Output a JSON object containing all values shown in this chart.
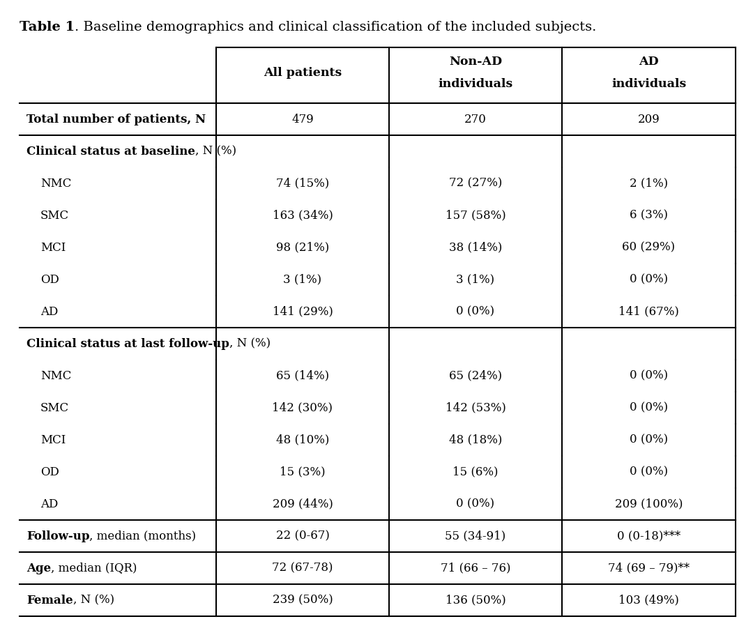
{
  "title_bold": "Table 1",
  "title_rest": ". Baseline demographics and clinical classification of the included subjects.",
  "col_headers": [
    [
      "All patients",
      ""
    ],
    [
      "Non-AD",
      "individuals"
    ],
    [
      "AD",
      "individuals"
    ]
  ],
  "rows": [
    {
      "label": "Total number of patients, N",
      "label_bold": true,
      "label_rest": "",
      "indent": false,
      "values": [
        "479",
        "270",
        "209"
      ],
      "bottom_border": true,
      "top_border": true
    },
    {
      "label": "Clinical status at baseline",
      "label_bold": true,
      "label_rest": ", N (%)",
      "indent": false,
      "values": [
        "",
        "",
        ""
      ],
      "bottom_border": false,
      "top_border": false
    },
    {
      "label": "NMC",
      "label_bold": false,
      "label_rest": "",
      "indent": true,
      "values": [
        "74 (15%)",
        "72 (27%)",
        "2 (1%)"
      ],
      "bottom_border": false,
      "top_border": false
    },
    {
      "label": "SMC",
      "label_bold": false,
      "label_rest": "",
      "indent": true,
      "values": [
        "163 (34%)",
        "157 (58%)",
        "6 (3%)"
      ],
      "bottom_border": false,
      "top_border": false
    },
    {
      "label": "MCI",
      "label_bold": false,
      "label_rest": "",
      "indent": true,
      "values": [
        "98 (21%)",
        "38 (14%)",
        "60 (29%)"
      ],
      "bottom_border": false,
      "top_border": false
    },
    {
      "label": "OD",
      "label_bold": false,
      "label_rest": "",
      "indent": true,
      "values": [
        "3 (1%)",
        "3 (1%)",
        "0 (0%)"
      ],
      "bottom_border": false,
      "top_border": false
    },
    {
      "label": "AD",
      "label_bold": false,
      "label_rest": "",
      "indent": true,
      "values": [
        "141 (29%)",
        "0 (0%)",
        "141 (67%)"
      ],
      "bottom_border": true,
      "top_border": false
    },
    {
      "label": "Clinical status at last follow-up",
      "label_bold": true,
      "label_rest": ", N (%)",
      "indent": false,
      "values": [
        "",
        "",
        ""
      ],
      "bottom_border": false,
      "top_border": false
    },
    {
      "label": "NMC",
      "label_bold": false,
      "label_rest": "",
      "indent": true,
      "values": [
        "65 (14%)",
        "65 (24%)",
        "0 (0%)"
      ],
      "bottom_border": false,
      "top_border": false
    },
    {
      "label": "SMC",
      "label_bold": false,
      "label_rest": "",
      "indent": true,
      "values": [
        "142 (30%)",
        "142 (53%)",
        "0 (0%)"
      ],
      "bottom_border": false,
      "top_border": false
    },
    {
      "label": "MCI",
      "label_bold": false,
      "label_rest": "",
      "indent": true,
      "values": [
        "48 (10%)",
        "48 (18%)",
        "0 (0%)"
      ],
      "bottom_border": false,
      "top_border": false
    },
    {
      "label": "OD",
      "label_bold": false,
      "label_rest": "",
      "indent": true,
      "values": [
        "15 (3%)",
        "15 (6%)",
        "0 (0%)"
      ],
      "bottom_border": false,
      "top_border": false
    },
    {
      "label": "AD",
      "label_bold": false,
      "label_rest": "",
      "indent": true,
      "values": [
        "209 (44%)",
        "0 (0%)",
        "209 (100%)"
      ],
      "bottom_border": true,
      "top_border": false
    },
    {
      "label": "Follow-up",
      "label_bold": true,
      "label_rest": ", median (months)",
      "indent": false,
      "values": [
        "22 (0-67)",
        "55 (34-91)",
        "0 (0-18)***"
      ],
      "bottom_border": true,
      "top_border": false
    },
    {
      "label": "Age",
      "label_bold": true,
      "label_rest": ", median (IQR)",
      "indent": false,
      "values": [
        "72 (67-78)",
        "71 (66 – 76)",
        "74 (69 – 79)**"
      ],
      "bottom_border": true,
      "top_border": false
    },
    {
      "label": "Female",
      "label_bold": true,
      "label_rest": ", N (%)",
      "indent": false,
      "values": [
        "239 (50%)",
        "136 (50%)",
        "103 (49%)"
      ],
      "bottom_border": true,
      "top_border": false
    }
  ],
  "background_color": "#ffffff",
  "text_color": "#000000",
  "border_color": "#000000",
  "font_size": 12,
  "header_font_size": 12.5,
  "title_font_size": 14
}
